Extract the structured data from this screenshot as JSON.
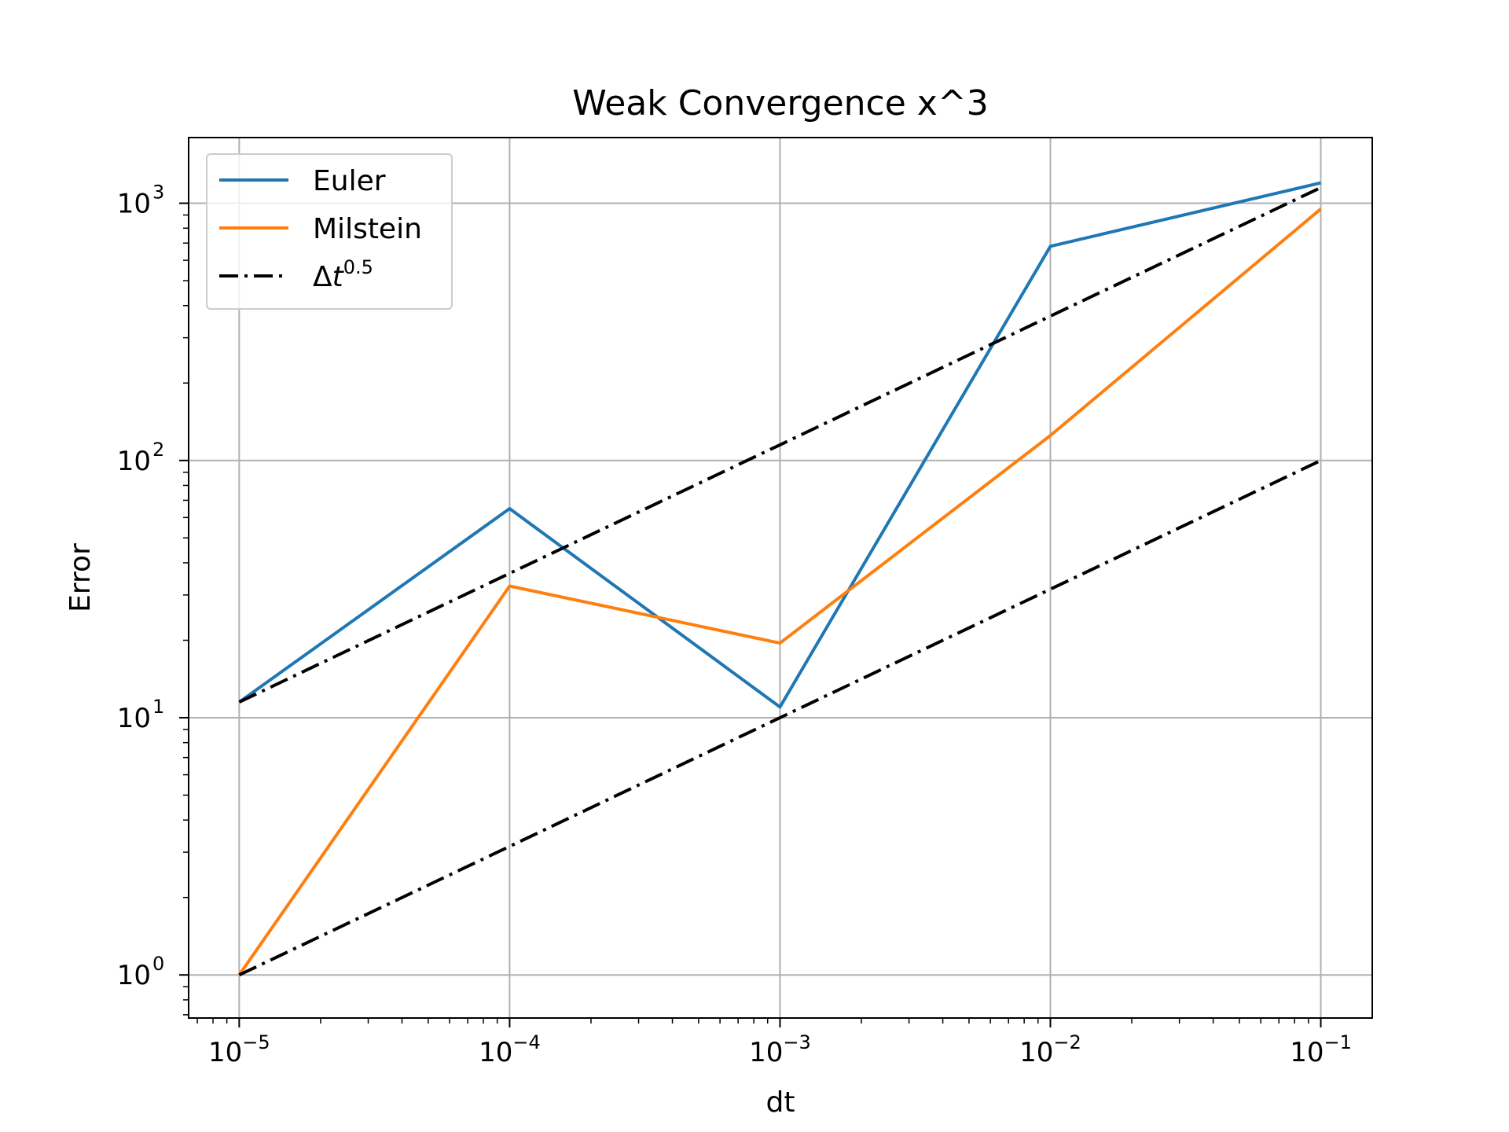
{
  "chart_data": {
    "type": "line",
    "title": "Weak Convergence x^3",
    "xlabel": "dt",
    "ylabel": "Error",
    "xscale": "log",
    "yscale": "log",
    "xlim": [
      6.5e-06,
      0.155
    ],
    "ylim": [
      0.68,
      1800
    ],
    "grid": true,
    "legend_position": "top-left",
    "x_ticks": [
      {
        "value": 1e-05,
        "base": "10",
        "exp": "−5"
      },
      {
        "value": 0.0001,
        "base": "10",
        "exp": "−4"
      },
      {
        "value": 0.001,
        "base": "10",
        "exp": "−3"
      },
      {
        "value": 0.01,
        "base": "10",
        "exp": "−2"
      },
      {
        "value": 0.1,
        "base": "10",
        "exp": "−1"
      }
    ],
    "y_ticks": [
      {
        "value": 1,
        "base": "10",
        "exp": "0"
      },
      {
        "value": 10,
        "base": "10",
        "exp": "1"
      },
      {
        "value": 100,
        "base": "10",
        "exp": "2"
      },
      {
        "value": 1000,
        "base": "10",
        "exp": "3"
      }
    ],
    "x": [
      1e-05,
      0.0001,
      0.001,
      0.01,
      0.1
    ],
    "series": [
      {
        "name": "Euler",
        "color": "#1f77b4",
        "style": "solid",
        "values": [
          11.5,
          65,
          11,
          680,
          1200
        ]
      },
      {
        "name": "Milstein",
        "color": "#ff7f0e",
        "style": "solid",
        "values": [
          1.0,
          32.5,
          19.5,
          125,
          950
        ]
      },
      {
        "name": "Δt0.5",
        "color": "#000000",
        "style": "dashdot",
        "values": [
          11.5,
          36.4,
          115,
          364,
          1150
        ]
      },
      {
        "name": "",
        "color": "#000000",
        "style": "dashdot",
        "values": [
          1.0,
          3.16,
          10,
          31.6,
          100
        ]
      }
    ],
    "legend": [
      {
        "label": "Euler",
        "series_index": 0
      },
      {
        "label": "Milstein",
        "series_index": 1
      },
      {
        "label_main": "Δ",
        "label_var": "t",
        "label_sup": "0.5",
        "series_index": 2
      }
    ]
  }
}
